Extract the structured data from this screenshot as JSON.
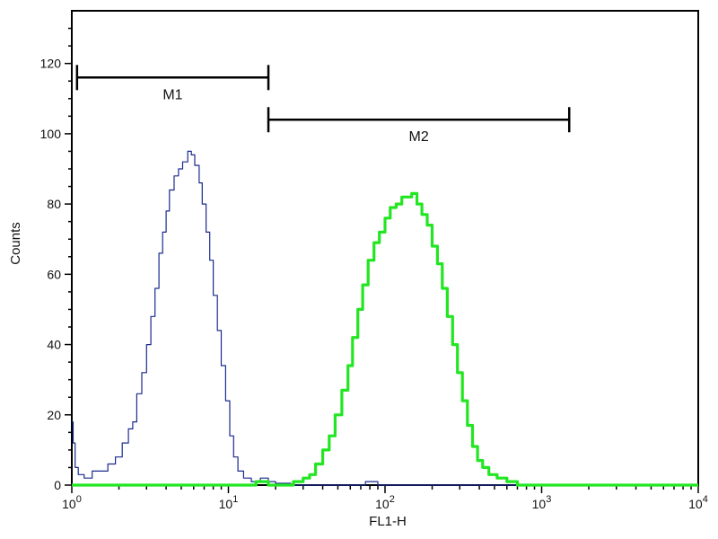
{
  "chart_data": {
    "type": "line",
    "xlabel": "FL1-H",
    "ylabel": "Counts",
    "x_scale": "log",
    "xlim": [
      1,
      10000
    ],
    "ylim": [
      0,
      135
    ],
    "x_ticks": [
      {
        "value": 1,
        "base": "10",
        "exp": "0"
      },
      {
        "value": 10,
        "base": "10",
        "exp": "1"
      },
      {
        "value": 100,
        "base": "10",
        "exp": "2"
      },
      {
        "value": 1000,
        "base": "10",
        "exp": "3"
      },
      {
        "value": 10000,
        "base": "10",
        "exp": "4"
      }
    ],
    "y_ticks": [
      0,
      20,
      40,
      60,
      80,
      100,
      120
    ],
    "markers": [
      {
        "label": "M1",
        "x_start": 1.08,
        "x_end": 18,
        "y": 116
      },
      {
        "label": "M2",
        "x_start": 18,
        "x_end": 1500,
        "y": 104
      }
    ],
    "series": [
      {
        "color": "#1a2a8c",
        "stroke_width": 1.2,
        "points": [
          [
            1.0,
            18
          ],
          [
            1.02,
            12
          ],
          [
            1.05,
            5
          ],
          [
            1.1,
            3
          ],
          [
            1.2,
            2
          ],
          [
            1.35,
            4
          ],
          [
            1.5,
            4
          ],
          [
            1.7,
            6
          ],
          [
            1.9,
            8
          ],
          [
            2.1,
            12
          ],
          [
            2.3,
            16
          ],
          [
            2.45,
            18
          ],
          [
            2.6,
            26
          ],
          [
            2.8,
            32
          ],
          [
            3.0,
            40
          ],
          [
            3.2,
            48
          ],
          [
            3.4,
            56
          ],
          [
            3.6,
            66
          ],
          [
            3.8,
            72
          ],
          [
            4.0,
            78
          ],
          [
            4.2,
            84
          ],
          [
            4.5,
            88
          ],
          [
            4.8,
            90
          ],
          [
            5.1,
            92
          ],
          [
            5.5,
            95
          ],
          [
            5.8,
            94
          ],
          [
            6.1,
            91
          ],
          [
            6.5,
            86
          ],
          [
            6.8,
            80
          ],
          [
            7.2,
            72
          ],
          [
            7.6,
            64
          ],
          [
            8.0,
            54
          ],
          [
            8.5,
            44
          ],
          [
            9.0,
            34
          ],
          [
            9.6,
            24
          ],
          [
            10.2,
            14
          ],
          [
            10.8,
            8
          ],
          [
            11.5,
            4
          ],
          [
            12.5,
            2
          ],
          [
            14,
            1
          ],
          [
            16,
            2
          ],
          [
            18,
            1
          ],
          [
            20,
            0.5
          ],
          [
            25,
            0
          ],
          [
            60,
            0
          ],
          [
            75,
            1
          ],
          [
            90,
            0
          ],
          [
            120,
            0
          ],
          [
            10000,
            0
          ]
        ]
      },
      {
        "color": "#22e622",
        "stroke_width": 3.2,
        "points": [
          [
            1.0,
            0
          ],
          [
            12,
            0
          ],
          [
            15,
            1
          ],
          [
            18,
            0
          ],
          [
            22,
            0
          ],
          [
            26,
            1
          ],
          [
            30,
            2
          ],
          [
            33,
            3
          ],
          [
            36,
            6
          ],
          [
            40,
            10
          ],
          [
            44,
            14
          ],
          [
            48,
            20
          ],
          [
            53,
            27
          ],
          [
            58,
            34
          ],
          [
            62,
            42
          ],
          [
            67,
            50
          ],
          [
            72,
            57
          ],
          [
            78,
            64
          ],
          [
            85,
            69
          ],
          [
            92,
            72
          ],
          [
            100,
            76
          ],
          [
            108,
            79
          ],
          [
            118,
            80
          ],
          [
            128,
            82
          ],
          [
            138,
            82
          ],
          [
            148,
            83
          ],
          [
            160,
            80
          ],
          [
            172,
            77
          ],
          [
            186,
            74
          ],
          [
            200,
            68
          ],
          [
            216,
            63
          ],
          [
            232,
            56
          ],
          [
            250,
            48
          ],
          [
            270,
            40
          ],
          [
            290,
            32
          ],
          [
            312,
            24
          ],
          [
            336,
            17
          ],
          [
            362,
            11
          ],
          [
            390,
            7
          ],
          [
            420,
            5
          ],
          [
            460,
            3
          ],
          [
            520,
            2
          ],
          [
            600,
            1
          ],
          [
            700,
            0
          ],
          [
            10000,
            0
          ]
        ]
      }
    ]
  }
}
